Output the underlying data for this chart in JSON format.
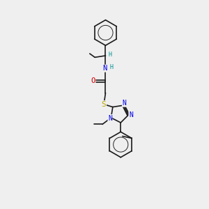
{
  "bg_color": "#efefef",
  "bond_color": "#1a1a1a",
  "bond_width": 1.2,
  "atom_colors": {
    "N": "#0000ee",
    "O": "#dd0000",
    "S": "#bbaa00",
    "H": "#009090",
    "C": "#1a1a1a"
  },
  "font_size_atom": 7.5,
  "font_size_H": 6.0,
  "font_size_small": 6.0
}
